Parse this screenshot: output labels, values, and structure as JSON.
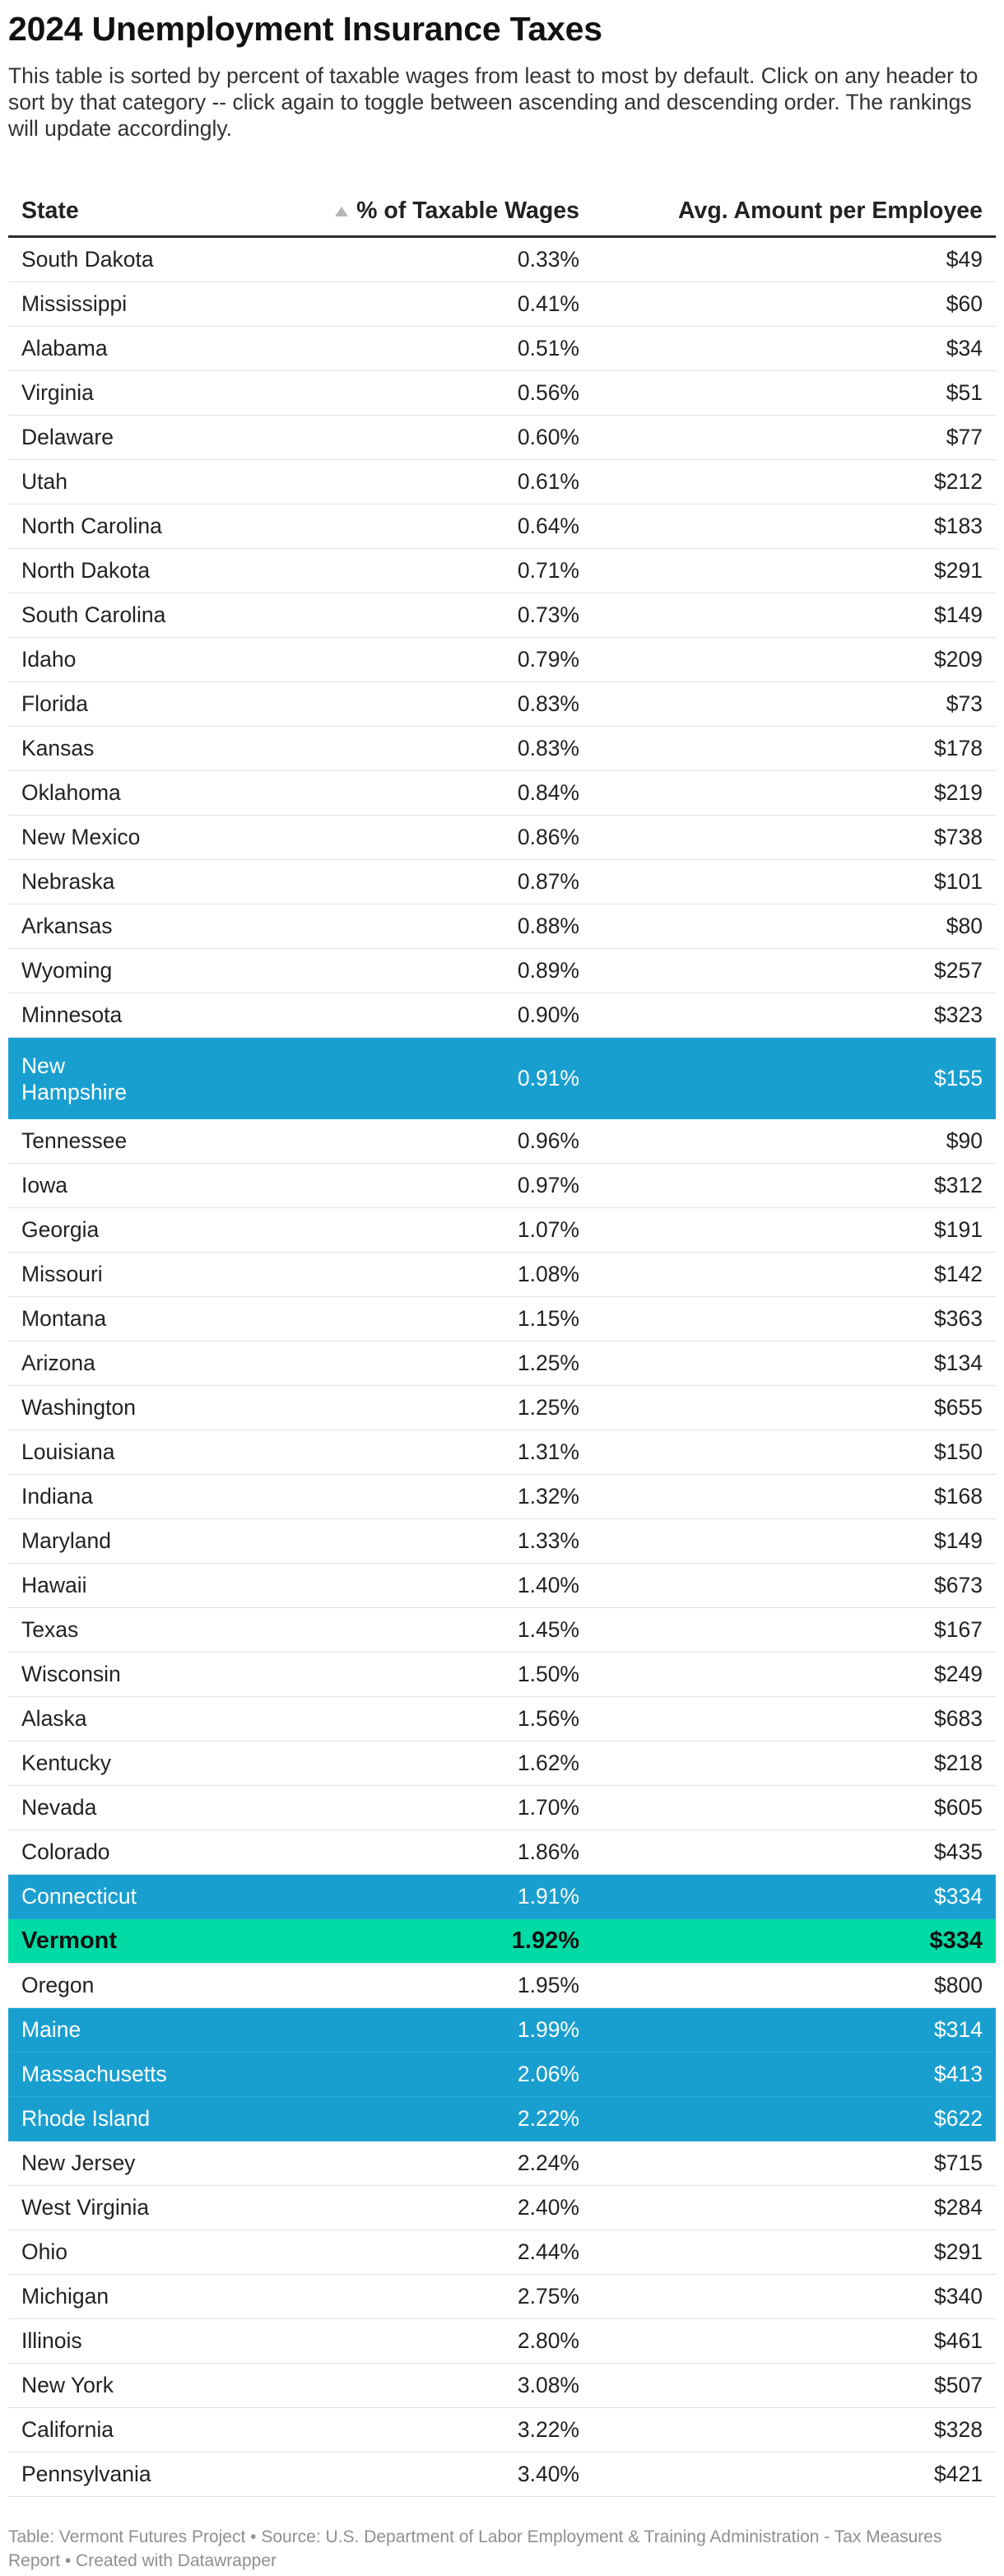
{
  "title": "2024 Unemployment Insurance Taxes",
  "intro": "This table is sorted by percent of taxable wages from least to most by default. Click on any header to sort by that category -- click again to toggle between ascending and descending order. The rankings will update accordingly.",
  "footer": "Table: Vermont Futures Project • Source: U.S. Department of Labor Employment & Training Administration - Tax Measures Report • Created with Datawrapper",
  "colors": {
    "highlight_blue": "#199fcf",
    "highlight_green": "#00dba6"
  },
  "sort": {
    "column": "% of Taxable Wages",
    "direction": "ascending",
    "icon": "sort-ascending-triangle-icon"
  },
  "chart_data": {
    "type": "table",
    "columns": [
      "State",
      "% of Taxable Wages",
      "Avg. Amount per Employee"
    ],
    "rows": [
      {
        "state": "South Dakota",
        "pct": "0.33%",
        "amount": "$49",
        "highlight": ""
      },
      {
        "state": "Mississippi",
        "pct": "0.41%",
        "amount": "$60",
        "highlight": ""
      },
      {
        "state": "Alabama",
        "pct": "0.51%",
        "amount": "$34",
        "highlight": ""
      },
      {
        "state": "Virginia",
        "pct": "0.56%",
        "amount": "$51",
        "highlight": ""
      },
      {
        "state": "Delaware",
        "pct": "0.60%",
        "amount": "$77",
        "highlight": ""
      },
      {
        "state": "Utah",
        "pct": "0.61%",
        "amount": "$212",
        "highlight": ""
      },
      {
        "state": "North Carolina",
        "pct": "0.64%",
        "amount": "$183",
        "highlight": ""
      },
      {
        "state": "North Dakota",
        "pct": "0.71%",
        "amount": "$291",
        "highlight": ""
      },
      {
        "state": "South Carolina",
        "pct": "0.73%",
        "amount": "$149",
        "highlight": ""
      },
      {
        "state": "Idaho",
        "pct": "0.79%",
        "amount": "$209",
        "highlight": ""
      },
      {
        "state": "Florida",
        "pct": "0.83%",
        "amount": "$73",
        "highlight": ""
      },
      {
        "state": "Kansas",
        "pct": "0.83%",
        "amount": "$178",
        "highlight": ""
      },
      {
        "state": "Oklahoma",
        "pct": "0.84%",
        "amount": "$219",
        "highlight": ""
      },
      {
        "state": "New Mexico",
        "pct": "0.86%",
        "amount": "$738",
        "highlight": ""
      },
      {
        "state": "Nebraska",
        "pct": "0.87%",
        "amount": "$101",
        "highlight": ""
      },
      {
        "state": "Arkansas",
        "pct": "0.88%",
        "amount": "$80",
        "highlight": ""
      },
      {
        "state": "Wyoming",
        "pct": "0.89%",
        "amount": "$257",
        "highlight": ""
      },
      {
        "state": "Minnesota",
        "pct": "0.90%",
        "amount": "$323",
        "highlight": ""
      },
      {
        "state": "New Hampshire",
        "pct": "0.91%",
        "amount": "$155",
        "highlight": "blue"
      },
      {
        "state": "Tennessee",
        "pct": "0.96%",
        "amount": "$90",
        "highlight": ""
      },
      {
        "state": "Iowa",
        "pct": "0.97%",
        "amount": "$312",
        "highlight": ""
      },
      {
        "state": "Georgia",
        "pct": "1.07%",
        "amount": "$191",
        "highlight": ""
      },
      {
        "state": "Missouri",
        "pct": "1.08%",
        "amount": "$142",
        "highlight": ""
      },
      {
        "state": "Montana",
        "pct": "1.15%",
        "amount": "$363",
        "highlight": ""
      },
      {
        "state": "Arizona",
        "pct": "1.25%",
        "amount": "$134",
        "highlight": ""
      },
      {
        "state": "Washington",
        "pct": "1.25%",
        "amount": "$655",
        "highlight": ""
      },
      {
        "state": "Louisiana",
        "pct": "1.31%",
        "amount": "$150",
        "highlight": ""
      },
      {
        "state": "Indiana",
        "pct": "1.32%",
        "amount": "$168",
        "highlight": ""
      },
      {
        "state": "Maryland",
        "pct": "1.33%",
        "amount": "$149",
        "highlight": ""
      },
      {
        "state": "Hawaii",
        "pct": "1.40%",
        "amount": "$673",
        "highlight": ""
      },
      {
        "state": "Texas",
        "pct": "1.45%",
        "amount": "$167",
        "highlight": ""
      },
      {
        "state": "Wisconsin",
        "pct": "1.50%",
        "amount": "$249",
        "highlight": ""
      },
      {
        "state": "Alaska",
        "pct": "1.56%",
        "amount": "$683",
        "highlight": ""
      },
      {
        "state": "Kentucky",
        "pct": "1.62%",
        "amount": "$218",
        "highlight": ""
      },
      {
        "state": "Nevada",
        "pct": "1.70%",
        "amount": "$605",
        "highlight": ""
      },
      {
        "state": "Colorado",
        "pct": "1.86%",
        "amount": "$435",
        "highlight": ""
      },
      {
        "state": "Connecticut",
        "pct": "1.91%",
        "amount": "$334",
        "highlight": "blue"
      },
      {
        "state": "Vermont",
        "pct": "1.92%",
        "amount": "$334",
        "highlight": "green"
      },
      {
        "state": "Oregon",
        "pct": "1.95%",
        "amount": "$800",
        "highlight": ""
      },
      {
        "state": "Maine",
        "pct": "1.99%",
        "amount": "$314",
        "highlight": "blue"
      },
      {
        "state": "Massachusetts",
        "pct": "2.06%",
        "amount": "$413",
        "highlight": "blue"
      },
      {
        "state": "Rhode Island",
        "pct": "2.22%",
        "amount": "$622",
        "highlight": "blue"
      },
      {
        "state": "New Jersey",
        "pct": "2.24%",
        "amount": "$715",
        "highlight": ""
      },
      {
        "state": "West Virginia",
        "pct": "2.40%",
        "amount": "$284",
        "highlight": ""
      },
      {
        "state": "Ohio",
        "pct": "2.44%",
        "amount": "$291",
        "highlight": ""
      },
      {
        "state": "Michigan",
        "pct": "2.75%",
        "amount": "$340",
        "highlight": ""
      },
      {
        "state": "Illinois",
        "pct": "2.80%",
        "amount": "$461",
        "highlight": ""
      },
      {
        "state": "New York",
        "pct": "3.08%",
        "amount": "$507",
        "highlight": ""
      },
      {
        "state": "California",
        "pct": "3.22%",
        "amount": "$328",
        "highlight": ""
      },
      {
        "state": "Pennsylvania",
        "pct": "3.40%",
        "amount": "$421",
        "highlight": ""
      }
    ]
  }
}
